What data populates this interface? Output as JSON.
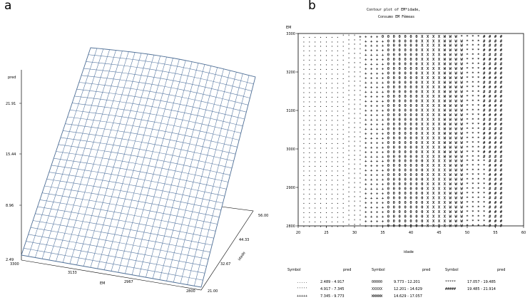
{
  "panels": {
    "a": "a",
    "b": "b"
  },
  "chart_data": [
    {
      "type": "surface",
      "zlabel": "pred",
      "xlabel": "EM",
      "ylabel": "idade",
      "z_ticks": [
        "2.49",
        "8.96",
        "15.44",
        "21.91"
      ],
      "x_ticks": [
        "3300",
        "3133",
        "2967",
        "2800"
      ],
      "y_ticks": [
        "21.00",
        "32.67",
        "44.33",
        "56.00"
      ],
      "grid": true
    },
    {
      "type": "contour",
      "title": "Contour plot of EM*idade,",
      "subtitle": "Consumo EM Fêmeas",
      "xlabel": "idade",
      "ylabel": "EM",
      "x_ticks": [
        "20",
        "25",
        "30",
        "35",
        "40",
        "45",
        "50",
        "55",
        "60"
      ],
      "y_ticks": [
        "3300",
        "3200",
        "3100",
        "3000",
        "2900",
        "2800"
      ],
      "xlim": [
        20,
        60
      ],
      "ylim": [
        2800,
        3300
      ],
      "legend_headers": [
        "Symbol",
        "pred",
        "Symbol",
        "pred",
        "Symbol",
        "pred"
      ],
      "legend": [
        {
          "symbol": ".....",
          "range": "2.489 - 4.917"
        },
        {
          "symbol": "'''''",
          "range": "4.917 - 7.345"
        },
        {
          "symbol": "+++++",
          "range": "7.345 - 9.773"
        },
        {
          "symbol": "00000",
          "range": "9.773 - 12.201"
        },
        {
          "symbol": "XXXXX",
          "range": "12.201 - 14.629"
        },
        {
          "symbol": "WWWWW",
          "range": "14.629 - 17.057"
        },
        {
          "symbol": "*****",
          "range": "17.057 - 19.485"
        },
        {
          "symbol": "#####",
          "range": "19.485 - 21.914"
        }
      ],
      "band_symbols": [
        ".",
        "'",
        "+",
        "0",
        "X",
        "W",
        "*",
        "#"
      ],
      "band_starts": [
        21,
        28,
        31,
        35,
        41.5,
        45.5,
        49,
        52.5
      ],
      "x_end": 56,
      "rows_y": [
        3293,
        3281,
        3269,
        3257,
        3245,
        3233,
        3221,
        3209,
        3197,
        3185,
        3173,
        3161,
        3149,
        3137,
        3125,
        3113,
        3101,
        3089,
        3077,
        3065,
        3053,
        3041,
        3029,
        3017,
        3005,
        2993,
        2981,
        2969,
        2957,
        2945,
        2933,
        2921,
        2909,
        2897,
        2885,
        2873,
        2861,
        2849,
        2837,
        2825,
        2813,
        2801
      ]
    }
  ]
}
